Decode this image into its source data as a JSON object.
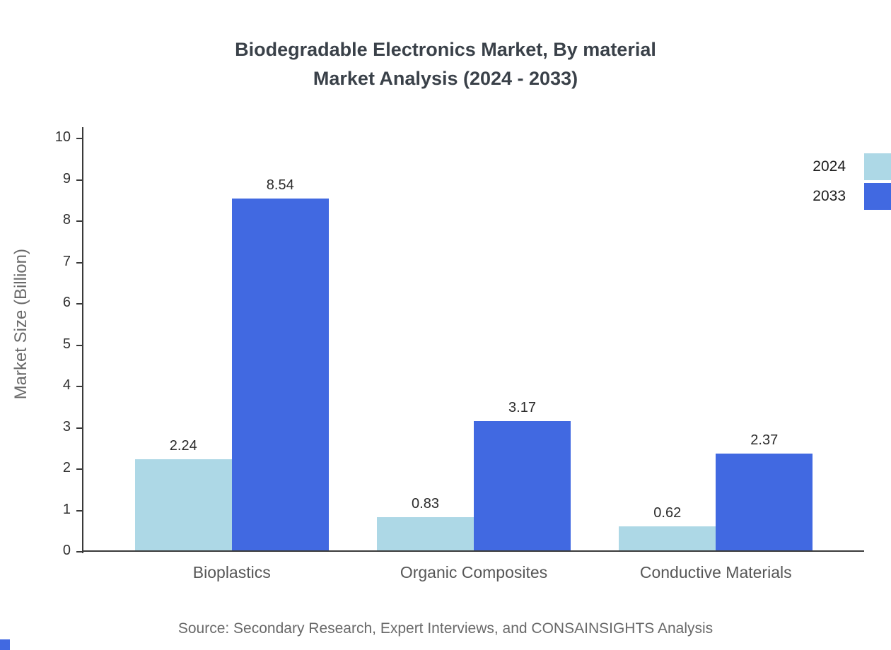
{
  "title": {
    "line1": "Biodegradable Electronics Market, By material",
    "line2": "Market Analysis (2024 - 2033)"
  },
  "source": "Source: Secondary Research, Expert Interviews, and CONSAINSIGHTS Analysis",
  "chart_data": {
    "type": "bar",
    "title": "Biodegradable Electronics Market, By material Market Analysis (2024 - 2033)",
    "categories": [
      "Bioplastics",
      "Organic Composites",
      "Conductive Materials"
    ],
    "series": [
      {
        "name": "2024",
        "color": "#add8e6",
        "values": [
          2.24,
          0.83,
          0.62
        ]
      },
      {
        "name": "2033",
        "color": "#4169e1",
        "values": [
          8.54,
          3.17,
          2.37
        ]
      }
    ],
    "xlabel": "",
    "ylabel": "Market Size (Billion)",
    "ylim": [
      0,
      10
    ],
    "ytick_step": 1,
    "grid": false,
    "legend_position": "top-right"
  }
}
